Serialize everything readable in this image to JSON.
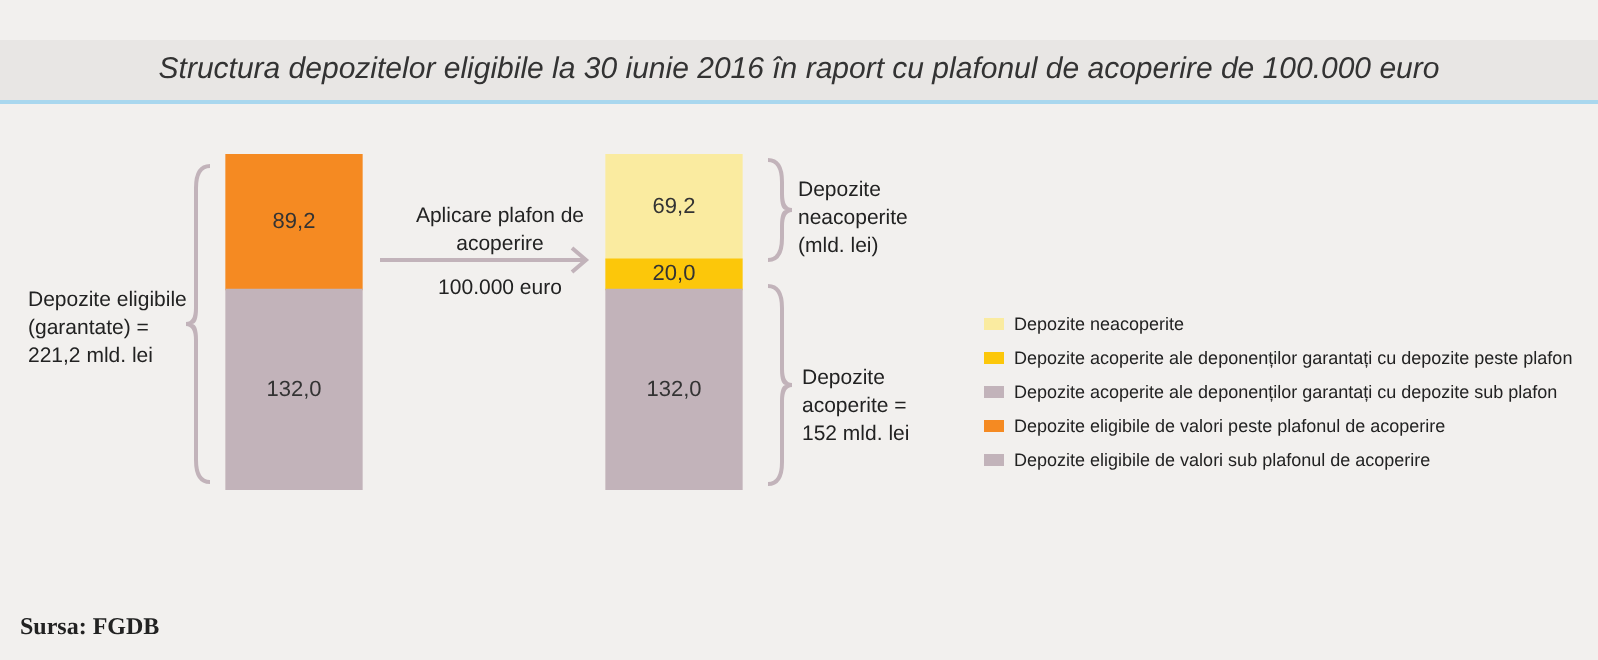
{
  "chart_data": {
    "type": "bar",
    "title": "Structura depozitelor eligibile la 30 iunie 2016 în raport cu plafonul de acoperire de 100.000 euro",
    "categories": [
      null,
      null
    ],
    "stacked": true,
    "legend": "right",
    "series": [
      {
        "name": "Depozite eligibile de valori sub plafonul de acoperire",
        "color": "#c2b3ba",
        "values": [
          132.0,
          null
        ],
        "value_labels": [
          "132,0",
          null
        ]
      },
      {
        "name": "Depozite eligibile de valori peste plafonul de acoperire",
        "color": "#f58a22",
        "values": [
          89.2,
          null
        ],
        "value_labels": [
          "89,2",
          null
        ]
      },
      {
        "name": "Depozite acoperite ale deponenților garantați cu depozite sub plafon",
        "color": "#c2b3ba",
        "values": [
          null,
          132.0
        ],
        "value_labels": [
          null,
          "132,0"
        ]
      },
      {
        "name": "Depozite acoperite ale deponenților garantați cu depozite peste plafon",
        "color": "#fcc70a",
        "values": [
          null,
          20.0
        ],
        "value_labels": [
          null,
          "20,0"
        ]
      },
      {
        "name": "Depozite neacoperite",
        "color": "#faeba0",
        "values": [
          null,
          69.2
        ],
        "value_labels": [
          null,
          "69,2"
        ]
      }
    ],
    "annotations": [
      "Depozite eligibile (garantate) = 221,2 mld. lei",
      "Aplicare plafon de acoperire",
      "100.000 euro",
      "Depozite neacoperite (mld. lei)",
      "Depozite acoperite = 152 mld. lei",
      "Sursa: FGDB"
    ]
  }
}
